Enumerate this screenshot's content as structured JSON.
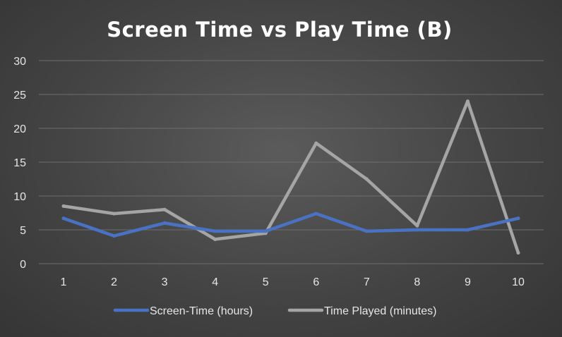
{
  "chart_data": {
    "type": "line",
    "title": "Screen Time vs Play Time (B)",
    "xlabel": "",
    "ylabel": "",
    "x": [
      1,
      2,
      3,
      4,
      5,
      6,
      7,
      8,
      9,
      10
    ],
    "x_tick_labels": [
      "1",
      "2",
      "3",
      "4",
      "5",
      "6",
      "7",
      "8",
      "9",
      "10"
    ],
    "ylim": [
      0,
      30
    ],
    "y_ticks": [
      0,
      5,
      10,
      15,
      20,
      25,
      30
    ],
    "y_tick_labels": [
      "0",
      "5",
      "10",
      "15",
      "20",
      "25",
      "30"
    ],
    "grid": true,
    "legend_position": "bottom",
    "series": [
      {
        "name": "Screen-Time (hours)",
        "color": "#4a72c4",
        "values": [
          6.7,
          4.1,
          6.0,
          4.8,
          4.8,
          7.4,
          4.8,
          5.0,
          5.0,
          6.7
        ]
      },
      {
        "name": "Time Played (minutes)",
        "color": "#a5a5a5",
        "values": [
          8.5,
          7.4,
          8.0,
          3.6,
          4.5,
          17.8,
          12.5,
          5.6,
          24.0,
          1.6
        ]
      }
    ]
  }
}
